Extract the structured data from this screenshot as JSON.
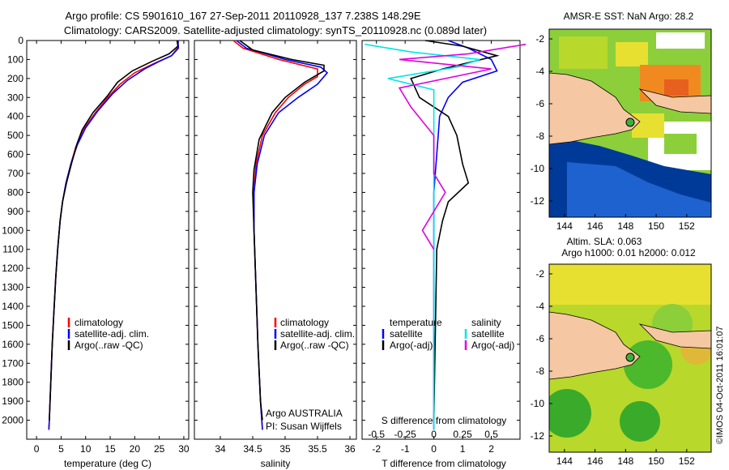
{
  "title_line1": "Argo profile: CS 5901610_167 27-Sep-2011 20110928_137 7.238S 148.29E",
  "title_line2": "Climatology: CARS2009. Satellite-adjusted climatology: synTS_20110928.nc (0.089d later)",
  "watermark": "©IMOS 04-Oct-2011 16:01:07",
  "panel_a": {
    "xlabel": "temperature (deg C)",
    "legend": [
      "climatology",
      "satellite-adj. clim.",
      "Argo(..raw -QC)"
    ]
  },
  "panel_b": {
    "xlabel": "salinity",
    "legend": [
      "climatology",
      "satellite-adj. clim.",
      "Argo(..raw -QC)"
    ],
    "note_line1": "Argo AUSTRALIA",
    "note_line2": "PI: Susan Wijffels"
  },
  "panel_c": {
    "top_label": "S difference from climatology",
    "xlabel": "T difference from climatology",
    "legend_head_t": "temperature",
    "legend_head_s": "salinity",
    "legend_t": [
      "satellite",
      "Argo(-adj)"
    ],
    "legend_s": [
      "satellite",
      "Argo(-adj)"
    ]
  },
  "map_top": {
    "title": "AMSR-E SST: NaN Argo: 28.2",
    "xticks": [
      "144",
      "146",
      "148",
      "150",
      "152"
    ],
    "yticks": [
      "-2",
      "-4",
      "-6",
      "-8",
      "-10",
      "-12"
    ]
  },
  "map_bottom": {
    "title_line1": "Altim. SLA: 0.063",
    "title_line2": "Argo h1000: 0.01 h2000: 0.012",
    "xticks": [
      "144",
      "146",
      "148",
      "150",
      "152"
    ],
    "yticks": [
      "-2",
      "-4",
      "-6",
      "-8",
      "-10",
      "-12"
    ]
  },
  "colors": {
    "climatology": "#ff0000",
    "satellite": "#0000ff",
    "argo": "#000000",
    "sal_satellite": "#00e5e5",
    "sal_argo": "#e000e0",
    "land": "#f5c7a2",
    "low_sst": "#003a99",
    "mid_sst": "#e8e030",
    "high_sst": "#f08a20"
  },
  "chart_data": [
    {
      "type": "line",
      "panel": "temperature",
      "xlabel": "temperature (deg C)",
      "ylabel": "depth",
      "xlim": [
        -2,
        31
      ],
      "ylim": [
        2100,
        0
      ],
      "xticks": [
        0,
        5,
        10,
        15,
        20,
        25,
        30
      ],
      "yticks": [
        0,
        100,
        200,
        300,
        400,
        500,
        600,
        700,
        800,
        900,
        1000,
        1100,
        1200,
        1300,
        1400,
        1500,
        1600,
        1700,
        1800,
        1900,
        2000
      ],
      "series": [
        {
          "name": "climatology",
          "color": "#ff0000",
          "points": [
            [
              28.9,
              0
            ],
            [
              28.7,
              40
            ],
            [
              27.5,
              80
            ],
            [
              24,
              120
            ],
            [
              20,
              170
            ],
            [
              17,
              230
            ],
            [
              14.5,
              300
            ],
            [
              12,
              380
            ],
            [
              9.5,
              470
            ],
            [
              8,
              560
            ],
            [
              7,
              650
            ],
            [
              6,
              750
            ],
            [
              5.3,
              850
            ],
            [
              4.8,
              950
            ],
            [
              4.3,
              1100
            ],
            [
              3.9,
              1250
            ],
            [
              3.5,
              1450
            ],
            [
              3.2,
              1600
            ],
            [
              2.9,
              1800
            ],
            [
              2.6,
              2000
            ],
            [
              2.5,
              2050
            ]
          ]
        },
        {
          "name": "satellite-adj. clim.",
          "color": "#0000ff",
          "points": [
            [
              28.8,
              0
            ],
            [
              28.9,
              40
            ],
            [
              27.5,
              80
            ],
            [
              25,
              110
            ],
            [
              22,
              150
            ],
            [
              18.5,
              210
            ],
            [
              15.5,
              280
            ],
            [
              12.5,
              370
            ],
            [
              10,
              460
            ],
            [
              8.3,
              550
            ],
            [
              7,
              650
            ],
            [
              6,
              750
            ],
            [
              5.3,
              850
            ],
            [
              4.8,
              950
            ],
            [
              4.3,
              1100
            ],
            [
              3.9,
              1250
            ],
            [
              3.5,
              1450
            ],
            [
              3.2,
              1600
            ],
            [
              2.9,
              1800
            ],
            [
              2.6,
              2000
            ],
            [
              2.5,
              2050
            ]
          ]
        },
        {
          "name": "Argo(..raw -QC)",
          "color": "#000000",
          "points": [
            [
              28.6,
              0
            ],
            [
              28.8,
              30
            ],
            [
              27,
              70
            ],
            [
              23.5,
              110
            ],
            [
              19.5,
              160
            ],
            [
              16.5,
              220
            ],
            [
              14.5,
              290
            ],
            [
              11.5,
              380
            ],
            [
              9.3,
              470
            ],
            [
              8.3,
              540
            ],
            [
              7.2,
              640
            ],
            [
              6.1,
              750
            ],
            [
              5.3,
              850
            ],
            [
              4.8,
              950
            ],
            [
              4.3,
              1100
            ],
            [
              3.9,
              1250
            ],
            [
              3.5,
              1450
            ],
            [
              3.2,
              1600
            ],
            [
              2.9,
              1800
            ],
            [
              2.6,
              2000
            ]
          ]
        }
      ]
    },
    {
      "type": "line",
      "panel": "salinity",
      "xlabel": "salinity",
      "ylim": [
        2100,
        0
      ],
      "xlim": [
        33.6,
        36.1
      ],
      "xticks": [
        34,
        34.5,
        35,
        35.5,
        36
      ],
      "series": [
        {
          "name": "climatology",
          "color": "#ff0000",
          "points": [
            [
              34.2,
              0
            ],
            [
              34.35,
              40
            ],
            [
              34.9,
              100
            ],
            [
              35.5,
              150
            ],
            [
              35.5,
              190
            ],
            [
              35.3,
              230
            ],
            [
              35.05,
              300
            ],
            [
              34.85,
              380
            ],
            [
              34.65,
              500
            ],
            [
              34.55,
              650
            ],
            [
              34.52,
              800
            ],
            [
              34.52,
              1000
            ],
            [
              34.55,
              1300
            ],
            [
              34.58,
              1600
            ],
            [
              34.62,
              1900
            ],
            [
              34.65,
              2050
            ]
          ]
        },
        {
          "name": "satellite-adj. clim.",
          "color": "#0000ff",
          "points": [
            [
              34.25,
              0
            ],
            [
              34.4,
              40
            ],
            [
              35.0,
              100
            ],
            [
              35.55,
              140
            ],
            [
              35.65,
              170
            ],
            [
              35.5,
              230
            ],
            [
              35.2,
              300
            ],
            [
              34.9,
              380
            ],
            [
              34.68,
              500
            ],
            [
              34.57,
              650
            ],
            [
              34.52,
              800
            ],
            [
              34.52,
              1000
            ],
            [
              34.55,
              1300
            ],
            [
              34.58,
              1600
            ],
            [
              34.62,
              1900
            ],
            [
              34.65,
              2050
            ]
          ]
        },
        {
          "name": "Argo(..raw -QC)",
          "color": "#000000",
          "points": [
            [
              34.3,
              0
            ],
            [
              34.5,
              50
            ],
            [
              35.1,
              100
            ],
            [
              35.6,
              130
            ],
            [
              35.6,
              160
            ],
            [
              35.3,
              220
            ],
            [
              35.0,
              300
            ],
            [
              34.8,
              380
            ],
            [
              34.6,
              520
            ],
            [
              34.52,
              680
            ],
            [
              34.5,
              800
            ],
            [
              34.52,
              1000
            ],
            [
              34.55,
              1300
            ],
            [
              34.58,
              1600
            ],
            [
              34.62,
              1900
            ],
            [
              34.65,
              2000
            ]
          ]
        }
      ]
    },
    {
      "type": "line",
      "panel": "differences",
      "xlabel": "T difference from climatology",
      "xlim_T": [
        -2.5,
        3
      ],
      "xticks_T": [
        -2,
        -1,
        0,
        1,
        2
      ],
      "xticks_S": [
        -0.5,
        -0.25,
        0,
        0.25,
        0.5
      ],
      "ylim": [
        2100,
        0
      ],
      "series": [
        {
          "name": "temperature satellite",
          "color": "#0000ff",
          "points": [
            [
              0.5,
              0
            ],
            [
              1.2,
              40
            ],
            [
              2.0,
              100
            ],
            [
              2.2,
              160
            ],
            [
              1.0,
              220
            ],
            [
              0.5,
              300
            ],
            [
              0.2,
              400
            ],
            [
              0.15,
              500
            ],
            [
              0.1,
              600
            ],
            [
              0,
              800
            ],
            [
              0,
              1000
            ],
            [
              0,
              2050
            ]
          ]
        },
        {
          "name": "temperature Argo(-adj)",
          "color": "#000000",
          "points": [
            [
              -0.3,
              0
            ],
            [
              1.0,
              30
            ],
            [
              2.2,
              80
            ],
            [
              0.3,
              150
            ],
            [
              -0.8,
              200
            ],
            [
              -0.5,
              300
            ],
            [
              0.5,
              400
            ],
            [
              0.8,
              500
            ],
            [
              1.0,
              650
            ],
            [
              1.2,
              750
            ],
            [
              0.5,
              850
            ],
            [
              0.3,
              950
            ],
            [
              0.1,
              1100
            ],
            [
              0,
              2000
            ]
          ]
        },
        {
          "name": "salinity satellite",
          "color": "#00e5e5",
          "points": [
            [
              -0.6,
              20
            ],
            [
              -0.2,
              60
            ],
            [
              0.4,
              100
            ],
            [
              0.2,
              140
            ],
            [
              -0.4,
              200
            ],
            [
              0,
              260
            ],
            [
              0,
              2050
            ]
          ]
        },
        {
          "name": "salinity Argo(-adj)",
          "color": "#e000e0",
          "points": [
            [
              0.8,
              20
            ],
            [
              0.3,
              70
            ],
            [
              -0.3,
              100
            ],
            [
              0.5,
              150
            ],
            [
              -0.3,
              250
            ],
            [
              -0.2,
              350
            ],
            [
              0,
              500
            ],
            [
              0,
              700
            ],
            [
              0.1,
              800
            ],
            [
              -0.1,
              1000
            ],
            [
              0,
              1100
            ]
          ]
        }
      ]
    }
  ]
}
